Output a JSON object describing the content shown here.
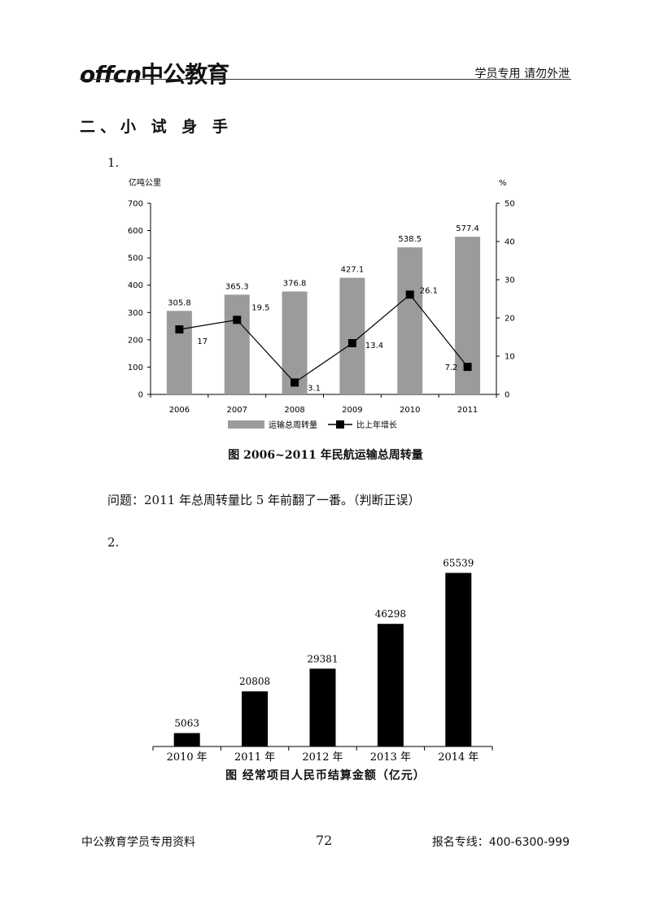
{
  "header": {
    "logo_latin": "offcn",
    "logo_cn": "中公教育",
    "note": "学员专用 请勿外泄"
  },
  "section_title": "二、小 试 身 手",
  "question1": {
    "number": "1.",
    "text": "问题：2011 年总周转量比 5 年前翻了一番。（判断正误）"
  },
  "question2": {
    "number": "2."
  },
  "colors": {
    "bar1": "#9b9b9b",
    "line1": "#000000",
    "bar2": "#000000"
  },
  "chart_data": [
    {
      "type": "bar",
      "title": "图  2006~2011 年民航运输总周转量",
      "categories": [
        "2006",
        "2007",
        "2008",
        "2009",
        "2010",
        "2011"
      ],
      "ylabel": "亿吨公里",
      "y2label": "%",
      "ylim": [
        0,
        700
      ],
      "y_ticks": [
        0,
        100,
        200,
        300,
        400,
        500,
        600,
        700
      ],
      "y2lim": [
        0,
        50
      ],
      "y2_ticks": [
        0,
        10,
        20,
        30,
        40,
        50
      ],
      "series": [
        {
          "name": "运输总周转量",
          "kind": "bar",
          "axis": "left",
          "values": [
            305.8,
            365.3,
            376.8,
            427.1,
            538.5,
            577.4
          ],
          "labels": [
            "305.8",
            "365.3",
            "376.8",
            "427.1",
            "538.5",
            "577.4"
          ]
        },
        {
          "name": "比上年增长",
          "kind": "line",
          "axis": "right",
          "values": [
            17,
            19.5,
            3.1,
            13.4,
            26.1,
            7.2
          ],
          "labels": [
            "17",
            "19.5",
            "3.1",
            "13.4",
            "26.1",
            "7.2"
          ]
        }
      ],
      "legend": "bottom",
      "grid": false
    },
    {
      "type": "bar",
      "title": "图  经常项目人民币结算金额（亿元）",
      "categories": [
        "2010 年",
        "2011 年",
        "2012 年",
        "2013 年",
        "2014 年"
      ],
      "ylim": [
        0,
        70000
      ],
      "series": [
        {
          "kind": "bar",
          "values": [
            5063,
            20808,
            29381,
            46298,
            65539
          ],
          "labels": [
            "5063",
            "20808",
            "29381",
            "46298",
            "65539"
          ]
        }
      ],
      "grid": false
    }
  ],
  "footer": {
    "left": "中公教育学员专用资料",
    "page": "72",
    "right": "报名专线：400-6300-999"
  }
}
